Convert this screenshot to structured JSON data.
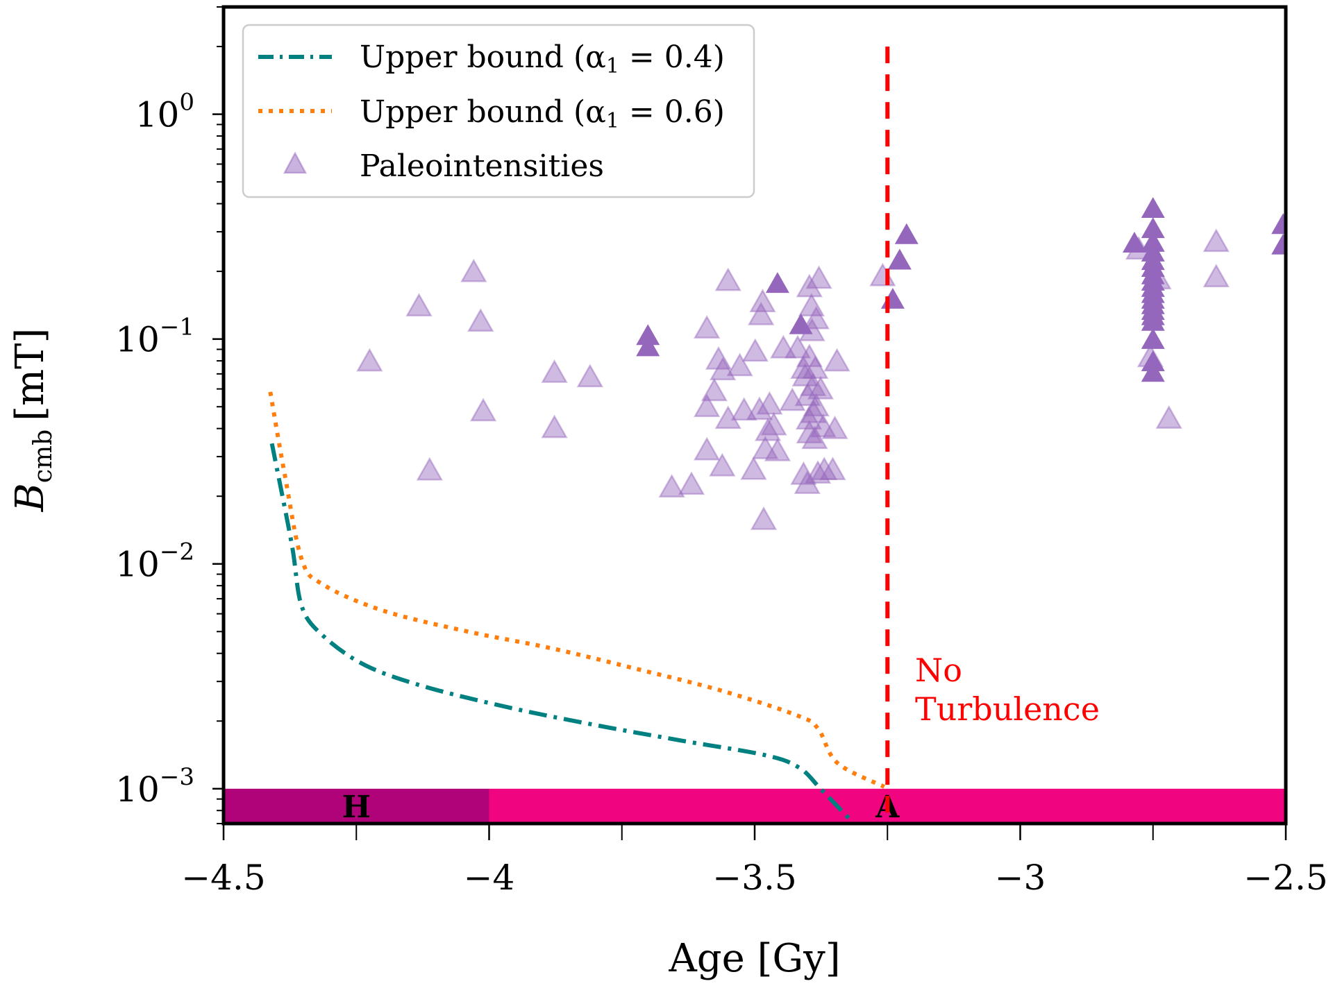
{
  "chart_data": {
    "type": "scatter",
    "title": "",
    "xlabel": "Age [Gy]",
    "ylabel": "B",
    "ylabel_subscript": "cmb",
    "ylabel_unit": "[mT]",
    "xlim": [
      -4.5,
      -2.5
    ],
    "ylim": [
      0.0007,
      3.0
    ],
    "yscale": "log",
    "grid": false,
    "x_ticks": [
      {
        "value": -4.5,
        "label": "−4.5"
      },
      {
        "value": -4.0,
        "label": "−4"
      },
      {
        "value": -3.5,
        "label": "−3.5"
      },
      {
        "value": -3.0,
        "label": "−3"
      },
      {
        "value": -2.5,
        "label": "−2.5"
      }
    ],
    "x_minor_ticks": [
      -4.25,
      -3.75,
      -3.25,
      -2.75
    ],
    "y_ticks": [
      {
        "value": 1,
        "base": "10",
        "exp": "0"
      },
      {
        "value": 0.1,
        "base": "10",
        "exp": "−1"
      },
      {
        "value": 0.01,
        "base": "10",
        "exp": "−2"
      },
      {
        "value": 0.001,
        "base": "10",
        "exp": "−3"
      }
    ],
    "legend": {
      "position": "top-left",
      "entries": [
        {
          "label": "Upper bound (α",
          "sub": "1",
          "tail": " = 0.4)",
          "style": "dashdot",
          "color": "#008080"
        },
        {
          "label": "Upper bound (α",
          "sub": "1",
          "tail": " = 0.6)",
          "style": "dotted",
          "color": "#ff7f0e"
        },
        {
          "label": "Paleointensities",
          "style": "triangle",
          "color": "#9467bd"
        }
      ]
    },
    "series": [
      {
        "name": "Upper bound (alpha1 = 0.4)",
        "style": "dashdot",
        "color": "#008080",
        "x": [
          -4.409,
          -4.372,
          -4.353,
          -4.313,
          -4.233,
          -4.12,
          -3.96,
          -3.8,
          -3.64,
          -3.48,
          -3.416,
          -3.376,
          -3.323
        ],
        "y": [
          0.0343,
          0.0124,
          0.0065,
          0.0048,
          0.00354,
          0.00284,
          0.00229,
          0.00192,
          0.00164,
          0.00141,
          0.00124,
          0.001,
          0.00074
        ]
      },
      {
        "name": "Upper bound (alpha1 = 0.6)",
        "style": "dotted",
        "color": "#ff7f0e",
        "x": [
          -4.412,
          -4.385,
          -4.353,
          -4.313,
          -4.2,
          -4.04,
          -3.88,
          -3.72,
          -3.56,
          -3.416,
          -3.38,
          -3.344,
          -3.256
        ],
        "y": [
          0.0582,
          0.0251,
          0.0105,
          0.0081,
          0.0062,
          0.005,
          0.0042,
          0.0034,
          0.00272,
          0.0021,
          0.00184,
          0.0013,
          0.00102
        ]
      },
      {
        "name": "Paleointensities",
        "style": "triangle",
        "color": "#9467bd",
        "points": [
          {
            "x": -4.225,
            "y": 0.0785,
            "solid": false
          },
          {
            "x": -4.132,
            "y": 0.138,
            "solid": false
          },
          {
            "x": -4.112,
            "y": 0.0257,
            "solid": false
          },
          {
            "x": -4.029,
            "y": 0.196,
            "solid": false
          },
          {
            "x": -4.016,
            "y": 0.118,
            "solid": false
          },
          {
            "x": -4.011,
            "y": 0.0471,
            "solid": false
          },
          {
            "x": -3.877,
            "y": 0.0699,
            "solid": false
          },
          {
            "x": -3.877,
            "y": 0.0397,
            "solid": false
          },
          {
            "x": -3.81,
            "y": 0.0668,
            "solid": false
          },
          {
            "x": -3.701,
            "y": 0.102,
            "solid": true
          },
          {
            "x": -3.701,
            "y": 0.091,
            "solid": true
          },
          {
            "x": -3.656,
            "y": 0.0216,
            "solid": false
          },
          {
            "x": -3.619,
            "y": 0.0222,
            "solid": false
          },
          {
            "x": -3.59,
            "y": 0.11,
            "solid": false
          },
          {
            "x": -3.59,
            "y": 0.0492,
            "solid": false
          },
          {
            "x": -3.59,
            "y": 0.0316,
            "solid": false
          },
          {
            "x": -3.576,
            "y": 0.0579,
            "solid": false
          },
          {
            "x": -3.568,
            "y": 0.08,
            "solid": false
          },
          {
            "x": -3.56,
            "y": 0.0717,
            "solid": false
          },
          {
            "x": -3.55,
            "y": 0.179,
            "solid": false
          },
          {
            "x": -3.55,
            "y": 0.0436,
            "solid": false
          },
          {
            "x": -3.561,
            "y": 0.0268,
            "solid": false
          },
          {
            "x": -3.528,
            "y": 0.0748,
            "solid": false
          },
          {
            "x": -3.52,
            "y": 0.0475,
            "solid": false
          },
          {
            "x": -3.502,
            "y": 0.0259,
            "solid": false
          },
          {
            "x": -3.499,
            "y": 0.0868,
            "solid": false
          },
          {
            "x": -3.491,
            "y": 0.0478,
            "solid": false
          },
          {
            "x": -3.488,
            "y": 0.126,
            "solid": false
          },
          {
            "x": -3.485,
            "y": 0.144,
            "solid": false
          },
          {
            "x": -3.483,
            "y": 0.0155,
            "solid": false
          },
          {
            "x": -3.48,
            "y": 0.032,
            "solid": false
          },
          {
            "x": -3.475,
            "y": 0.0385,
            "solid": false
          },
          {
            "x": -3.472,
            "y": 0.0505,
            "solid": false
          },
          {
            "x": -3.464,
            "y": 0.0408,
            "solid": false
          },
          {
            "x": -3.457,
            "y": 0.0313,
            "solid": false
          },
          {
            "x": -3.457,
            "y": 0.174,
            "solid": true
          },
          {
            "x": -3.446,
            "y": 0.0898,
            "solid": false
          },
          {
            "x": -3.429,
            "y": 0.0524,
            "solid": false
          },
          {
            "x": -3.419,
            "y": 0.0898,
            "solid": false
          },
          {
            "x": -3.413,
            "y": 0.114,
            "solid": true
          },
          {
            "x": -3.408,
            "y": 0.0728,
            "solid": false
          },
          {
            "x": -3.408,
            "y": 0.0246,
            "solid": false
          },
          {
            "x": -3.405,
            "y": 0.0674,
            "solid": false
          },
          {
            "x": -3.401,
            "y": 0.0224,
            "solid": false
          },
          {
            "x": -3.4,
            "y": 0.0551,
            "solid": false
          },
          {
            "x": -3.398,
            "y": 0.0433,
            "solid": false
          },
          {
            "x": -3.397,
            "y": 0.168,
            "solid": false
          },
          {
            "x": -3.397,
            "y": 0.0821,
            "solid": false
          },
          {
            "x": -3.397,
            "y": 0.0376,
            "solid": false
          },
          {
            "x": -3.393,
            "y": 0.138,
            "solid": false
          },
          {
            "x": -3.392,
            "y": 0.107,
            "solid": false
          },
          {
            "x": -3.39,
            "y": 0.061,
            "solid": false
          },
          {
            "x": -3.389,
            "y": 0.0463,
            "solid": false
          },
          {
            "x": -3.387,
            "y": 0.0355,
            "solid": false
          },
          {
            "x": -3.386,
            "y": 0.0728,
            "solid": false
          },
          {
            "x": -3.384,
            "y": 0.121,
            "solid": false
          },
          {
            "x": -3.384,
            "y": 0.0495,
            "solid": false
          },
          {
            "x": -3.381,
            "y": 0.0249,
            "solid": false
          },
          {
            "x": -3.379,
            "y": 0.183,
            "solid": false
          },
          {
            "x": -3.376,
            "y": 0.059,
            "solid": false
          },
          {
            "x": -3.371,
            "y": 0.04,
            "solid": false
          },
          {
            "x": -3.369,
            "y": 0.0258,
            "solid": false
          },
          {
            "x": -3.345,
            "y": 0.0785,
            "solid": false
          },
          {
            "x": -3.353,
            "y": 0.0258,
            "solid": false
          },
          {
            "x": -3.349,
            "y": 0.0393,
            "solid": false
          },
          {
            "x": -3.259,
            "y": 0.188,
            "solid": false
          },
          {
            "x": -3.24,
            "y": 0.148,
            "solid": true
          },
          {
            "x": -3.227,
            "y": 0.221,
            "solid": true
          },
          {
            "x": -3.214,
            "y": 0.287,
            "solid": true
          },
          {
            "x": -2.785,
            "y": 0.263,
            "solid": true
          },
          {
            "x": -2.777,
            "y": 0.247,
            "solid": false
          },
          {
            "x": -2.75,
            "y": 0.375,
            "solid": true
          },
          {
            "x": -2.75,
            "y": 0.305,
            "solid": true
          },
          {
            "x": -2.75,
            "y": 0.265,
            "solid": true
          },
          {
            "x": -2.75,
            "y": 0.24,
            "solid": true
          },
          {
            "x": -2.75,
            "y": 0.22,
            "solid": true
          },
          {
            "x": -2.75,
            "y": 0.205,
            "solid": true
          },
          {
            "x": -2.75,
            "y": 0.19,
            "solid": true
          },
          {
            "x": -2.75,
            "y": 0.178,
            "solid": true
          },
          {
            "x": -2.75,
            "y": 0.167,
            "solid": true
          },
          {
            "x": -2.75,
            "y": 0.157,
            "solid": true
          },
          {
            "x": -2.75,
            "y": 0.148,
            "solid": true
          },
          {
            "x": -2.75,
            "y": 0.14,
            "solid": true
          },
          {
            "x": -2.75,
            "y": 0.132,
            "solid": true
          },
          {
            "x": -2.75,
            "y": 0.125,
            "solid": true
          },
          {
            "x": -2.75,
            "y": 0.118,
            "solid": true
          },
          {
            "x": -2.75,
            "y": 0.098,
            "solid": true
          },
          {
            "x": -2.75,
            "y": 0.078,
            "solid": true
          },
          {
            "x": -2.75,
            "y": 0.07,
            "solid": true
          },
          {
            "x": -2.755,
            "y": 0.082,
            "solid": false
          },
          {
            "x": -2.74,
            "y": 0.182,
            "solid": false
          },
          {
            "x": -2.72,
            "y": 0.0437,
            "solid": false
          },
          {
            "x": -2.631,
            "y": 0.267,
            "solid": false
          },
          {
            "x": -2.631,
            "y": 0.186,
            "solid": false
          },
          {
            "x": -2.505,
            "y": 0.318,
            "solid": true
          },
          {
            "x": -2.505,
            "y": 0.258,
            "solid": true
          }
        ]
      }
    ],
    "vertical_line": {
      "x": -3.25,
      "ymin": 0.0007,
      "ymax": 2.0,
      "style": "dashed",
      "color": "#ff0000"
    },
    "annotations": [
      {
        "text_lines": [
          "No",
          "Turbulence"
        ],
        "x": -3.2,
        "y": 0.0038,
        "color": "#ff0000"
      }
    ],
    "bands": [
      {
        "label": "H",
        "x0": -4.5,
        "x1": -4.0,
        "y0": 0.0007,
        "y1": 0.001,
        "color": "#b0037a",
        "label_x": -4.25
      },
      {
        "label": "A",
        "x0": -4.0,
        "x1": -2.5,
        "y0": 0.0007,
        "y1": 0.001,
        "color": "#f0047f",
        "label_x": -3.25
      }
    ]
  }
}
